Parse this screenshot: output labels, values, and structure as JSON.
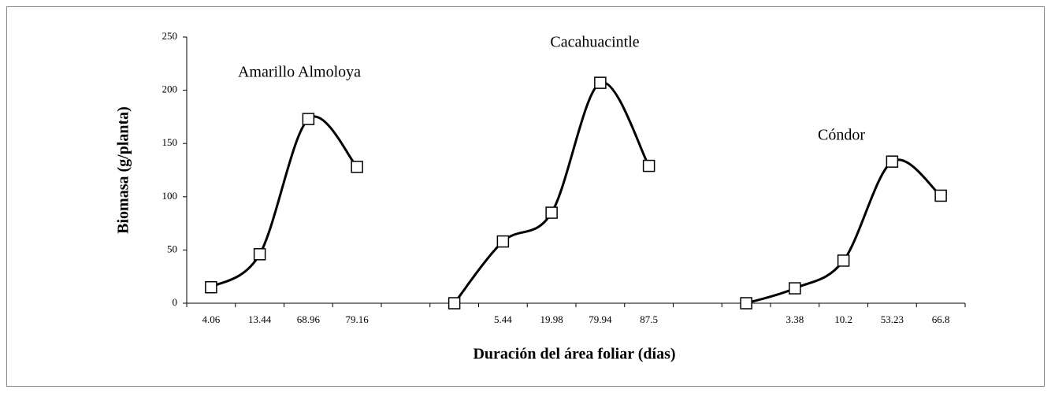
{
  "chart_data": {
    "type": "line",
    "x_label": "Duración del área foliar (días)",
    "y_label": "Biomasa (g/planta)",
    "categories": [
      "4.06",
      "13.44",
      "68.96",
      "79.16",
      null,
      null,
      "5.44",
      "19.98",
      "79.94",
      "87.5",
      null,
      null,
      "3.38",
      "10.2",
      "53.23",
      "66.8"
    ],
    "series": [
      {
        "name": "Amarillo Almoloya",
        "color": "#000000",
        "values": [
          15,
          46,
          173,
          128,
          null,
          null,
          null,
          null,
          null,
          null,
          null,
          null,
          null,
          null,
          null,
          null
        ]
      },
      {
        "name": "Cacahuacintle",
        "color": "#000000",
        "values": [
          null,
          null,
          null,
          null,
          null,
          0,
          58,
          85,
          207,
          129,
          null,
          null,
          null,
          null,
          null,
          null
        ]
      },
      {
        "name": "Cóndor",
        "color": "#000000",
        "values": [
          null,
          null,
          null,
          null,
          null,
          null,
          null,
          null,
          null,
          null,
          null,
          0,
          14,
          40,
          133,
          101
        ]
      }
    ],
    "ylim": [
      0,
      250
    ],
    "yticks": [
      0,
      50,
      100,
      150,
      200,
      250
    ],
    "smooth": true
  }
}
